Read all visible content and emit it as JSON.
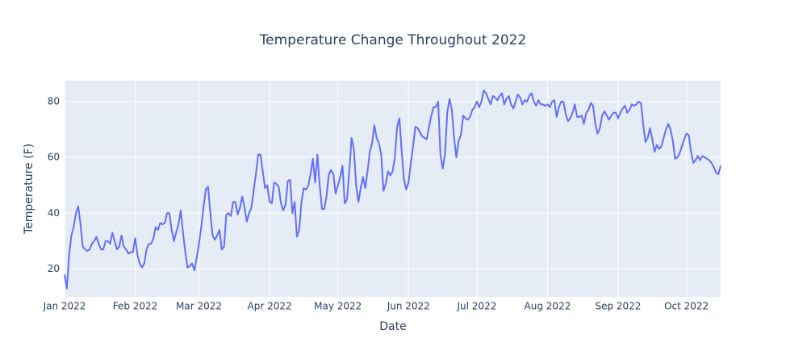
{
  "chart_data": {
    "type": "line",
    "title": "Temperature Change Throughout 2022",
    "x_label": "Date",
    "y_label": "Temperature (F)",
    "xlim": [
      "2022-01-01",
      "2022-10-16"
    ],
    "xticks": [
      {
        "value": "2022-01-01",
        "label": "Jan 2022"
      },
      {
        "value": "2022-02-01",
        "label": "Feb 2022"
      },
      {
        "value": "2022-03-01",
        "label": "Mar 2022"
      },
      {
        "value": "2022-04-01",
        "label": "Apr 2022"
      },
      {
        "value": "2022-05-01",
        "label": "May 2022"
      },
      {
        "value": "2022-06-01",
        "label": "Jun 2022"
      },
      {
        "value": "2022-07-01",
        "label": "Jul 2022"
      },
      {
        "value": "2022-08-01",
        "label": "Aug 2022"
      },
      {
        "value": "2022-09-01",
        "label": "Sep 2022"
      },
      {
        "value": "2022-10-01",
        "label": "Oct 2022"
      }
    ],
    "ylim": [
      10,
      87.5
    ],
    "yticks": [
      20,
      40,
      60,
      80
    ],
    "grid": true,
    "series": [
      {
        "color": "#636efa",
        "values": [
          18,
          13,
          25,
          32,
          35,
          40,
          42.5,
          36,
          28,
          27,
          26.5,
          27,
          29,
          30,
          31.5,
          29,
          27,
          27,
          30,
          30,
          29,
          33,
          30,
          27,
          28,
          32,
          28,
          27,
          25.5,
          26,
          26,
          31,
          25,
          22,
          20.5,
          22,
          27,
          29,
          29,
          31,
          35,
          34,
          36.5,
          36,
          36.5,
          40,
          40,
          34,
          30,
          33,
          36,
          41,
          33,
          26,
          20.5,
          21,
          22,
          19.5,
          24,
          29,
          35,
          42,
          48.5,
          49.5,
          40,
          32,
          30.5,
          32,
          34,
          27,
          28,
          39.5,
          40,
          39,
          44,
          44,
          39.5,
          42,
          46,
          42,
          37,
          40,
          42,
          48,
          54,
          61,
          61,
          55,
          49,
          50,
          44,
          43.5,
          51,
          50.5,
          49.5,
          43.5,
          41,
          43,
          51.5,
          52,
          40,
          44,
          31.5,
          34,
          44,
          49,
          48.5,
          50,
          54,
          59.5,
          51,
          61,
          50,
          41.5,
          41.5,
          46,
          54,
          55.5,
          54,
          47,
          50,
          53,
          57,
          43.5,
          45,
          55,
          67,
          63,
          50,
          44,
          49,
          53,
          49,
          55,
          62,
          65,
          71.5,
          67,
          65,
          61,
          48,
          50.5,
          55,
          53.5,
          55,
          60,
          71,
          74,
          62,
          52,
          48.5,
          51,
          58,
          64,
          71,
          70.5,
          69,
          67.5,
          67,
          66.5,
          71,
          75,
          78,
          78,
          80,
          61,
          56,
          61,
          76,
          81,
          77,
          67,
          60,
          66,
          68,
          75,
          74,
          73.5,
          74.5,
          77,
          78,
          80,
          78,
          80,
          84,
          83,
          81,
          79,
          82,
          81.5,
          80.5,
          82,
          83,
          79,
          81,
          82,
          79,
          77.5,
          80,
          82.5,
          81.5,
          79,
          80.5,
          80,
          82,
          83,
          80,
          78.5,
          80.5,
          79,
          79,
          78.5,
          79,
          78,
          80,
          80.5,
          74.5,
          78,
          80,
          80,
          75.5,
          73,
          74,
          76,
          79,
          74.5,
          74.5,
          75,
          72,
          76,
          77,
          79.5,
          78.5,
          72,
          68.5,
          70.5,
          75,
          76.5,
          75,
          73.5,
          75,
          76,
          76,
          74,
          76,
          77.5,
          78.5,
          76,
          77,
          79,
          78.5,
          79,
          80,
          79.5,
          72,
          65.5,
          67,
          70.5,
          66.5,
          62,
          64.5,
          63,
          64,
          67,
          70,
          72,
          70,
          66,
          59.5,
          60,
          61.5,
          64,
          66.5,
          68.5,
          68,
          62,
          58,
          59,
          60.5,
          59,
          60.5,
          60,
          59.5,
          59,
          58,
          56.5,
          54.5,
          54,
          57
        ]
      }
    ]
  }
}
